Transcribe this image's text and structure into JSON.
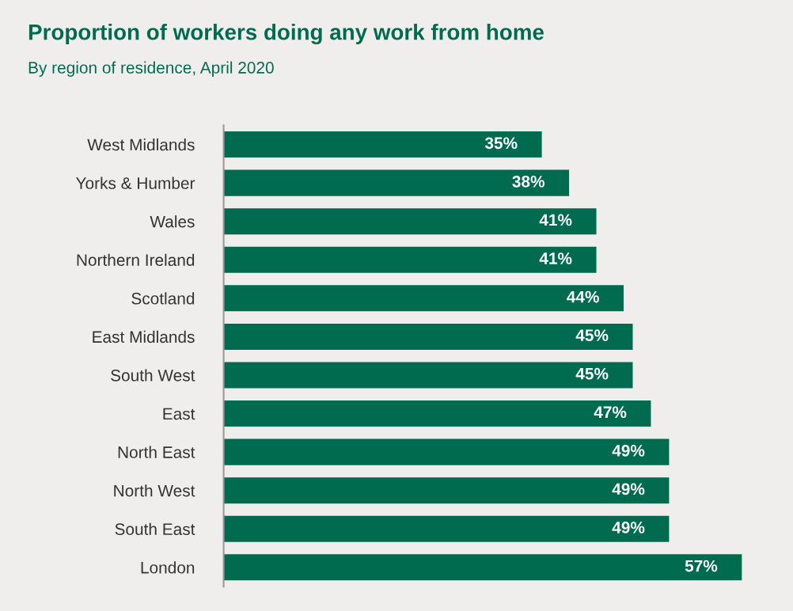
{
  "chart_data": {
    "type": "bar",
    "orientation": "horizontal",
    "title": "Proportion of workers doing any work from home",
    "subtitle": "By region of residence, April 2020",
    "categories": [
      "West Midlands",
      "Yorks & Humber",
      "Wales",
      "Northern Ireland",
      "Scotland",
      "East Midlands",
      "South West",
      "East",
      "North East",
      "North West",
      "South East",
      "London"
    ],
    "values": [
      35,
      38,
      41,
      41,
      44,
      45,
      45,
      47,
      49,
      49,
      49,
      57
    ],
    "color": "#006b4f",
    "data_labels": true,
    "value_labels": [
      "35%",
      "38%",
      "41%",
      "41%",
      "44%",
      "45%",
      "45%",
      "47%",
      "49%",
      "49%",
      "49%",
      "57%"
    ],
    "grid": false,
    "legend": false
  }
}
